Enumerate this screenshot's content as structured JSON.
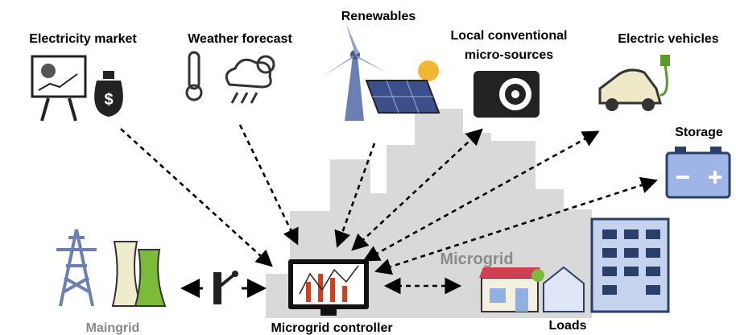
{
  "nodes": [
    {
      "label": "Electricity market"
    },
    {
      "label": "Weather forecast"
    },
    {
      "label": "Renewables"
    },
    {
      "label": [
        "Local conventional",
        "micro-sources"
      ]
    },
    {
      "label": "Electric vehicles"
    },
    {
      "label": "Storage"
    },
    {
      "label": "Maingrid"
    },
    {
      "label": "Microgrid controller"
    },
    {
      "label": "Loads"
    },
    {
      "label": "Microgrid"
    }
  ]
}
